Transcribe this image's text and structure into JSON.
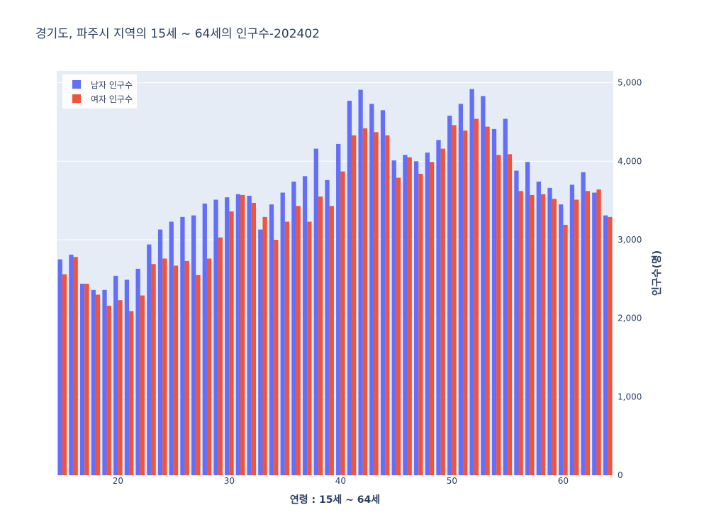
{
  "chart_data": {
    "type": "bar",
    "title": "경기도,  파주시 지역의 15세 ~ 64세의 인구수-202402",
    "xlabel": "연령 : 15세 ~ 64세",
    "ylabel": "인구수(명)",
    "x": [
      15,
      16,
      17,
      18,
      19,
      20,
      21,
      22,
      23,
      24,
      25,
      26,
      27,
      28,
      29,
      30,
      31,
      32,
      33,
      34,
      35,
      36,
      37,
      38,
      39,
      40,
      41,
      42,
      43,
      44,
      45,
      46,
      47,
      48,
      49,
      50,
      51,
      52,
      53,
      54,
      55,
      56,
      57,
      58,
      59,
      60,
      61,
      62,
      63,
      64
    ],
    "xlim": [
      14.5,
      64.5
    ],
    "ylim": [
      0,
      5150
    ],
    "x_ticks": [
      20,
      30,
      40,
      50,
      60
    ],
    "y_ticks": [
      0,
      1000,
      2000,
      3000,
      4000,
      5000
    ],
    "y_tick_labels": [
      "0",
      "1,000",
      "2,000",
      "3,000",
      "4,000",
      "5,000"
    ],
    "y_axis_side": "right",
    "grid": true,
    "legend_position": "top-left",
    "series": [
      {
        "name": "남자 인구수",
        "color": "#636efa",
        "values": [
          2750,
          2810,
          2440,
          2360,
          2360,
          2540,
          2490,
          2630,
          2940,
          3130,
          3230,
          3290,
          3310,
          3460,
          3510,
          3540,
          3580,
          3560,
          3130,
          3450,
          3600,
          3740,
          3810,
          4160,
          3760,
          4220,
          4770,
          4910,
          4730,
          4650,
          4010,
          4080,
          4000,
          4110,
          4270,
          4580,
          4730,
          4920,
          4830,
          4410,
          4540,
          3880,
          3990,
          3740,
          3660,
          3450,
          3700,
          3860,
          3600,
          3310
        ]
      },
      {
        "name": "여자 인구수",
        "color": "#ef553b",
        "values": [
          2560,
          2780,
          2440,
          2300,
          2160,
          2230,
          2090,
          2290,
          2690,
          2760,
          2670,
          2730,
          2550,
          2760,
          3030,
          3360,
          3570,
          3470,
          3290,
          3000,
          3230,
          3430,
          3230,
          3550,
          3430,
          3870,
          4330,
          4420,
          4370,
          4330,
          3790,
          4050,
          3840,
          3990,
          4160,
          4460,
          4390,
          4540,
          4440,
          4080,
          4090,
          3620,
          3570,
          3580,
          3520,
          3190,
          3510,
          3620,
          3640,
          3290
        ]
      }
    ]
  }
}
